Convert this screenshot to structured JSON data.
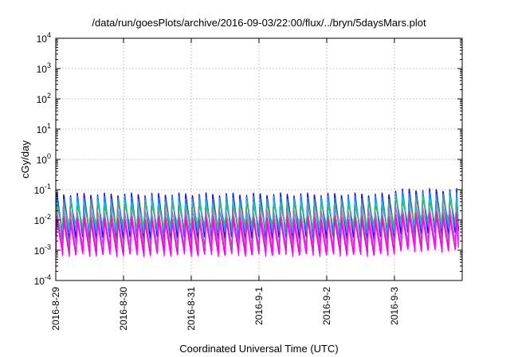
{
  "chart_data": {
    "type": "line",
    "title": "/data/run/goesPlots/archive/2016-09-03/22:00/flux/../bryn/5daysMars.plot",
    "xlabel": "Coordinated Universal Time (UTC)",
    "ylabel": "cGy/day",
    "yscale": "log",
    "ylim": [
      0.0001,
      10000
    ],
    "xlim": [
      "2016-08-29",
      "2016-09-04"
    ],
    "grid": true,
    "x_ticks": [
      "2016-8-29",
      "2016-8-30",
      "2016-8-31",
      "2016-9-1",
      "2016-9-2",
      "2016-9-3"
    ],
    "y_ticks": [
      {
        "base": "10",
        "exp": "-4",
        "value": 0.0001
      },
      {
        "base": "10",
        "exp": "-3",
        "value": 0.001
      },
      {
        "base": "10",
        "exp": "-2",
        "value": 0.01
      },
      {
        "base": "10",
        "exp": "-1",
        "value": 0.1
      },
      {
        "base": "10",
        "exp": "0",
        "value": 1
      },
      {
        "base": "10",
        "exp": "1",
        "value": 10
      },
      {
        "base": "10",
        "exp": "2",
        "value": 100
      },
      {
        "base": "10",
        "exp": "3",
        "value": 1000
      },
      {
        "base": "10",
        "exp": "4",
        "value": 10000
      }
    ],
    "pattern": {
      "start_day": 0,
      "end_day": 5.95,
      "cycles_per_day": 10,
      "jump_day": 5.0,
      "jump_factor": 1.4
    },
    "series": [
      {
        "color": "#a52a2a",
        "peak": 0.06,
        "trough": 0.0042
      },
      {
        "color": "#8a2be2",
        "peak": 0.065,
        "trough": 0.0032
      },
      {
        "color": "#0000ff",
        "peak": 0.07,
        "trough": 0.0025
      },
      {
        "color": "#1e90ff",
        "peak": 0.055,
        "trough": 0.0038
      },
      {
        "color": "#00ced1",
        "peak": 0.04,
        "trough": 0.005
      },
      {
        "color": "#3cb371",
        "peak": 0.032,
        "trough": 0.006
      },
      {
        "color": "#9370db",
        "peak": 0.02,
        "trough": 0.0015
      },
      {
        "color": "#ff1493",
        "peak": 0.012,
        "trough": 0.0009
      },
      {
        "color": "#ff00ff",
        "peak": 0.009,
        "trough": 0.0007
      }
    ]
  }
}
